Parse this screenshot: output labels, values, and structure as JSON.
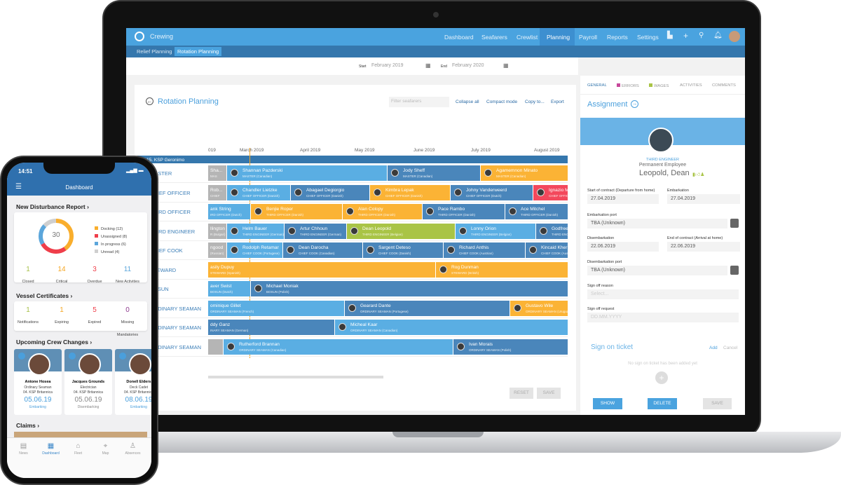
{
  "app": {
    "title": "Crewing",
    "nav": [
      "Dashboard",
      "Seafarers",
      "Crewlist",
      "Planning",
      "Payroll",
      "Reports",
      "Settings"
    ],
    "active_nav": "Planning",
    "subnav": [
      "Relief Planning",
      "Rotation Planning"
    ]
  },
  "dates": {
    "start_label": "Start",
    "start_value": "February 2019",
    "end_label": "End",
    "end_value": "February 2020"
  },
  "planning": {
    "title": "Rotation Planning",
    "filter_placeholder": "Filter seafarers",
    "actions": [
      "Collapse all",
      "Compact mode",
      "Copy to...",
      "Export"
    ],
    "months": [
      "019",
      "March 2019",
      "April 2019",
      "May 2019",
      "June 2019",
      "July 2019",
      "August 2019"
    ],
    "ship": "15. KSP Geronimo",
    "rows": [
      {
        "label": "MASTER",
        "bars": [
          {
            "name": "Sha...",
            "role": "MAS",
            "color": "grey"
          },
          {
            "name": "Shannan Pazderski",
            "role": "MASTER (Canadian)",
            "color": "light"
          },
          {
            "name": "Jody Sheff",
            "role": "MASTER (Canadian)",
            "color": "dark"
          },
          {
            "name": "Agamemnon Minato",
            "role": "MASTER (Canadian)",
            "color": "orange"
          }
        ]
      },
      {
        "label": "CHIEF OFFICER",
        "bars": [
          {
            "name": "Rob...",
            "role": "CHIEF",
            "color": "grey"
          },
          {
            "name": "Chandler Lietzke",
            "role": "CHIEF OFFICER (Danish)",
            "color": "light"
          },
          {
            "name": "Abagael Degiorgio",
            "role": "CHIEF OFFICER (Danish)",
            "color": "dark"
          },
          {
            "name": "Kimbra Lepak",
            "role": "CHIEF OFFICER (Danish)",
            "color": "orange"
          },
          {
            "name": "Johny Vanderweerd",
            "role": "CHIEF OFFICER (Dutch)",
            "color": "dark"
          },
          {
            "name": "Ignazio M",
            "role": "CHIEF OFFICER",
            "color": "red"
          }
        ]
      },
      {
        "label": "THIRD OFFICER",
        "bars": [
          {
            "name": "ank String",
            "role": "IRD OFFICER (Dutch)",
            "color": "light"
          },
          {
            "name": "Benjie Roper",
            "role": "THIRD OFFICER (Danish)",
            "color": "orange"
          },
          {
            "name": "Alan Colopy",
            "role": "THIRD OFFICER (Danish)",
            "color": "orange"
          },
          {
            "name": "Pace Rambo",
            "role": "THIRD OFFICER (Danish)",
            "color": "dark"
          },
          {
            "name": "Ace Mitchel",
            "role": "THIRD OFFICER (Danish)",
            "color": "dark"
          }
        ]
      },
      {
        "label": "THIRD ENGINEER",
        "bars": [
          {
            "name": "llington",
            "role": "R (Bulgari)",
            "color": "grey"
          },
          {
            "name": "Helm Bauer",
            "role": "THIRD ENGINEER (German)",
            "color": "light"
          },
          {
            "name": "Artur Chhoun",
            "role": "THIRD ENGINEER (German)",
            "color": "dark"
          },
          {
            "name": "Dean Leopold",
            "role": "THIRD ENGINEER (Belgian)",
            "color": "green"
          },
          {
            "name": "Lonny Orion",
            "role": "THIRD ENGINEER (Belgian)",
            "color": "light"
          },
          {
            "name": "Godfree",
            "role": "THIRD ENG",
            "color": "dark"
          }
        ]
      },
      {
        "label": "CHIEF COOK",
        "bars": [
          {
            "name": "ngood",
            "role": "(Russian)",
            "color": "grey"
          },
          {
            "name": "Rodolph Retamar",
            "role": "CHIEF COOK (Portugese)",
            "color": "light"
          },
          {
            "name": "Dean Darocha",
            "role": "CHIEF COOK (Canadian)",
            "color": "dark"
          },
          {
            "name": "Sargent Deteso",
            "role": "CHIEF COOK (Danish)",
            "color": "dark"
          },
          {
            "name": "Richard Anthis",
            "role": "CHIEF COOK (Austrian)",
            "color": "dark"
          },
          {
            "name": "Kincaid Kher",
            "role": "CHIEF COOK (Austr",
            "color": "dark"
          }
        ]
      },
      {
        "label": "STEWARD",
        "bars": [
          {
            "name": "asily Dupuy",
            "role": "STEWARD (Spanish)",
            "color": "orange"
          },
          {
            "name": "Rog Dunman",
            "role": "STEWARD (British)",
            "color": "orange"
          }
        ]
      },
      {
        "label": "BOSUN",
        "bars": [
          {
            "name": "aver Swist",
            "role": "BOSUN (Dutch)",
            "color": "light"
          },
          {
            "name": "Michael Moniak",
            "role": "BOSUN (Polish)",
            "color": "dark"
          }
        ]
      },
      {
        "label": "ORDINARY SEAMAN",
        "bars": [
          {
            "name": "ominique Gillet",
            "role": "ORDINARY SEAMAN (French)",
            "color": "light"
          },
          {
            "name": "Gearard Dante",
            "role": "ORDINARY SEAMAN (Portugese)",
            "color": "dark"
          },
          {
            "name": "Gustavo Wile",
            "role": "ORDINARY SEAMAN (Urugua",
            "color": "orange"
          }
        ]
      },
      {
        "label": "ORDINARY SEAMAN",
        "bars": [
          {
            "name": "ddy Ganz",
            "role": "INARY SEAMAN (German)",
            "color": "dark"
          },
          {
            "name": "Micheal Kaar",
            "role": "ORDINARY SEAMAN (Canadian)",
            "color": "light"
          }
        ]
      },
      {
        "label": "ORDINARY SEAMAN",
        "bars": [
          {
            "name": "",
            "role": "",
            "color": "grey"
          },
          {
            "name": "Rutherford Brannan",
            "role": "ORDINARY SEAMAN (Canadian)",
            "color": "light"
          },
          {
            "name": "Ivan Morais",
            "role": "ORDINARY SEAMAN (Polish)",
            "color": "dark"
          }
        ]
      }
    ],
    "reset": "RESET",
    "save": "SAVE"
  },
  "colors": {
    "light": "#5aaee3",
    "dark": "#4a86bb",
    "orange": "#fbb335",
    "green": "#a9c446",
    "red": "#f3485c",
    "grey": "#b5b5b5"
  },
  "panel": {
    "tabs": [
      "GENERAL",
      "ERRORS",
      "WAGES",
      "ACTIVITIES",
      "COMMENTS"
    ],
    "title": "Assignment",
    "rank": "THIRD ENGINEER",
    "employment": "Permanent Employee",
    "name": "Leopold, Dean",
    "fields": {
      "start_label": "Start of contract (Departure from home)",
      "start": "27.04.2019",
      "emb_label": "Embarkation",
      "emb": "27.04.2019",
      "emb_port_label": "Embarkation port",
      "emb_port": "TBA (Unknown)",
      "dis_label": "Disembarkation",
      "dis": "22.06.2019",
      "end_label": "End of contract (Arrival at home)",
      "end": "22.06.2019",
      "dis_port_label": "Disembarkation port",
      "dis_port": "TBA (Unknown)",
      "reason_label": "Sign off reason",
      "reason_ph": "Select...",
      "request_label": "Sign off request",
      "request_ph": "DD.MM.YYYY"
    },
    "ticket_title": "Sign on ticket",
    "ticket_add": "Add",
    "ticket_cancel": "Cancel",
    "ticket_empty": "No sign on ticket has been added yet",
    "show": "SHOW",
    "delete": "DELETE",
    "save": "SAVE"
  },
  "phone": {
    "time": "14:51",
    "title": "Dashboard",
    "report_title": "New Disturbance Report",
    "total": "30",
    "legend": [
      {
        "label": "Docking (12)",
        "value": 12,
        "color": "#f9ae2d"
      },
      {
        "label": "Unassigned (8)",
        "value": 8,
        "color": "#ef3e4a"
      },
      {
        "label": "In progress (6)",
        "value": 6,
        "color": "#5ba6db"
      },
      {
        "label": "Unread (4)",
        "value": 4,
        "color": "#cfcfcf"
      }
    ],
    "stats": [
      {
        "value": "1",
        "label": "Closed",
        "color": "#a7c04a"
      },
      {
        "value": "14",
        "label": "Critical",
        "color": "#f5a623"
      },
      {
        "value": "3",
        "label": "Overdue",
        "color": "#ef3e4a"
      },
      {
        "value": "11",
        "label": "New Activities",
        "color": "#5ba6db"
      }
    ],
    "cert_title": "Vessel Certificates",
    "certs": [
      {
        "value": "1",
        "label": "Notifications",
        "color": "#a7c04a"
      },
      {
        "value": "1",
        "label": "Expiring",
        "color": "#f5a623"
      },
      {
        "value": "5",
        "label": "Expired",
        "color": "#ef3e4a"
      },
      {
        "value": "0",
        "label": "Missing Mandatories",
        "color": "#8e3c8e"
      }
    ],
    "crew_title": "Upcoming Crew Changes",
    "crew": [
      {
        "name": "Antone Hosea",
        "rank": "Ordinary Seaman",
        "vessel": "04. KSP Britannica",
        "date": "05.06.19",
        "status": "Embarking",
        "color": "#4a9fdc"
      },
      {
        "name": "Jacques Grounds",
        "rank": "Electrician",
        "vessel": "04. KSP Britannica",
        "date": "05.06.19",
        "status": "Disembarking",
        "color": "#888"
      },
      {
        "name": "Donell Elders",
        "rank": "Deck Cadet",
        "vessel": "04. KSP Britannica",
        "date": "08.06.19",
        "status": "Embarking",
        "color": "#4a9fdc"
      }
    ],
    "claims_title": "Claims",
    "tabs": [
      "News",
      "Dashboard",
      "Fleet",
      "Map",
      "Absences"
    ],
    "active_tab": "Dashboard"
  }
}
